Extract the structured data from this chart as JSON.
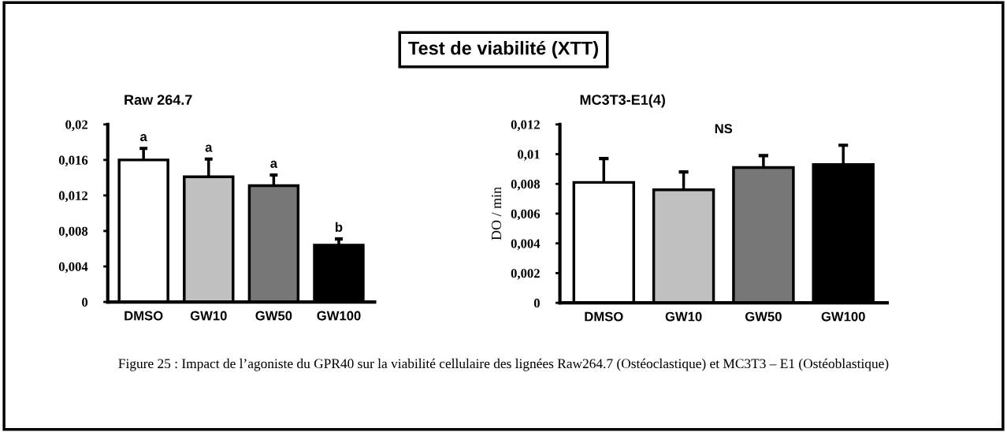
{
  "chart_data": [
    {
      "type": "other",
      "title": "Test de viabilité (XTT)",
      "annotations": [
        "Figure 25 : Impact de l’agoniste du GPR40 sur la viabilité cellulaire des lignées Raw264.7 (Ostéoclastique) et MC3T3 – E1 (Ostéoblastique)"
      ]
    },
    {
      "type": "bar",
      "title": "Raw 264.7",
      "categories": [
        "DMSO",
        "GW10",
        "GW50",
        "GW100"
      ],
      "values": [
        0.016,
        0.0141,
        0.0131,
        0.0064
      ],
      "colors": [
        "#ffffff",
        "#c0c0c0",
        "#777777",
        "#000000"
      ],
      "errors": [
        [
          0.016,
          0.0173
        ],
        [
          0.0141,
          0.0161
        ],
        [
          0.0131,
          0.0143
        ],
        [
          0.0064,
          0.0071
        ]
      ],
      "ylim": [
        0,
        0.02
      ],
      "yticks": [
        0,
        {
          "value": 0.004,
          "label": "0,004"
        },
        {
          "value": 0.008,
          "label": "0,008"
        },
        {
          "value": 0.012,
          "label": "0,012"
        },
        {
          "value": 0.016,
          "label": "0,016"
        },
        {
          "value": 0.02,
          "label": "0,02"
        }
      ],
      "annotations": [
        "a",
        "a",
        "a",
        "b"
      ],
      "grid": false,
      "legend": false
    },
    {
      "type": "bar",
      "title": "MC3T3-E1(4)",
      "ylabel": "DO / min",
      "categories": [
        "DMSO",
        "GW10",
        "GW50",
        "GW100"
      ],
      "values": [
        0.0081,
        0.0076,
        0.0091,
        0.0093
      ],
      "colors": [
        "#ffffff",
        "#c0c0c0",
        "#777777",
        "#000000"
      ],
      "errors": [
        [
          0.0081,
          0.0097
        ],
        [
          0.0076,
          0.0088
        ],
        [
          0.0091,
          0.0099
        ],
        [
          0.0093,
          0.0106
        ]
      ],
      "ylim": [
        0,
        0.012
      ],
      "yticks": [
        0,
        {
          "value": 0.002,
          "label": "0,002"
        },
        {
          "value": 0.004,
          "label": "0,004"
        },
        {
          "value": 0.006,
          "label": "0,006"
        },
        {
          "value": 0.008,
          "label": "0,008"
        },
        {
          "value": 0.01,
          "label": "0,01"
        },
        {
          "value": 0.012,
          "label": "0,012"
        }
      ],
      "annotations": [
        "NS"
      ],
      "grid": false,
      "legend": false
    }
  ]
}
